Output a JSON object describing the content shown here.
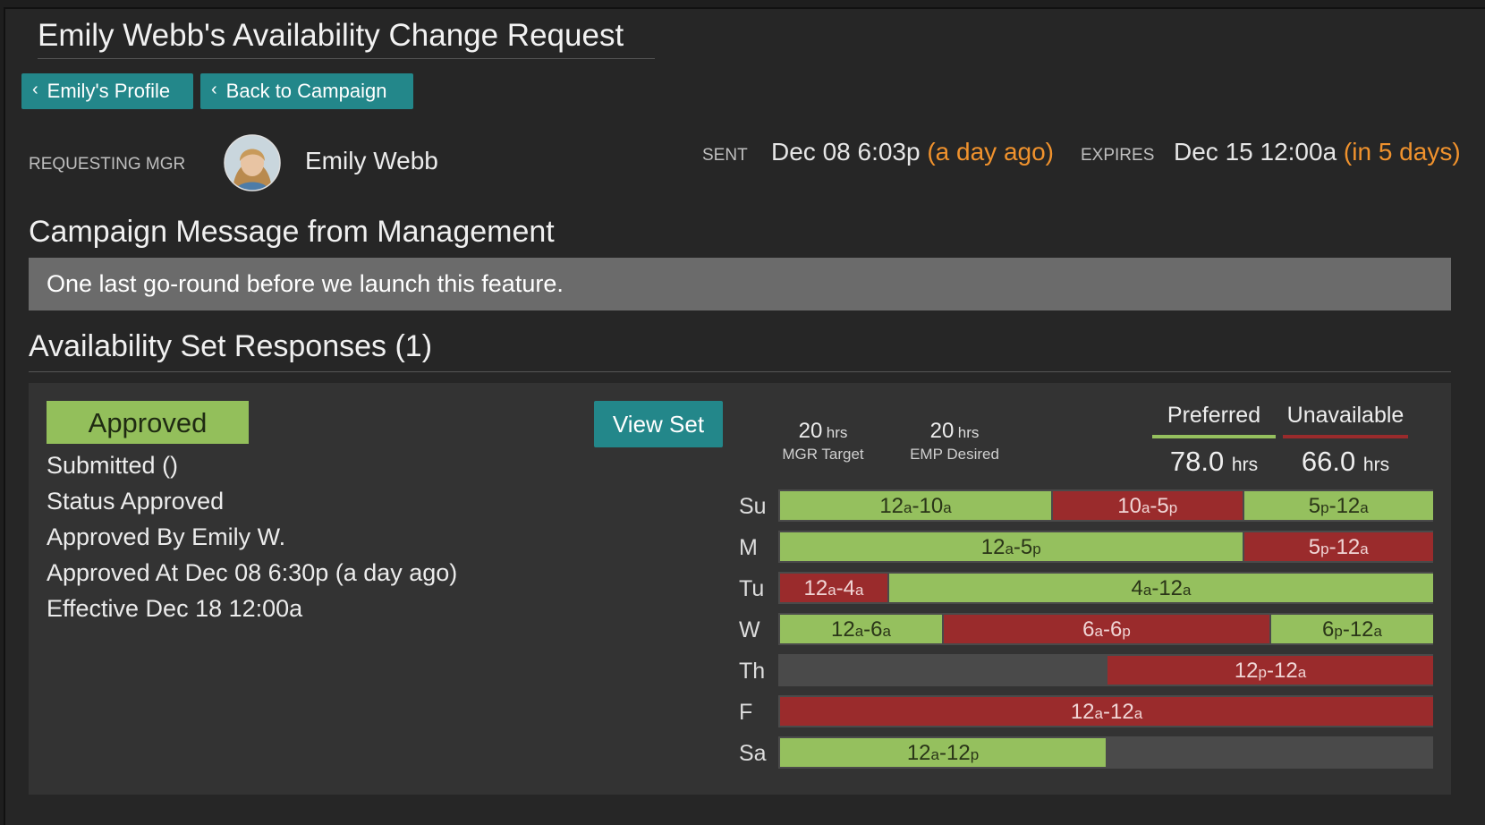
{
  "header": {
    "title": "Emily Webb's Availability Change Request",
    "buttons": [
      {
        "label": "Emily's Profile"
      },
      {
        "label": "Back to Campaign"
      }
    ]
  },
  "meta": {
    "requesting_label": "REQUESTING MGR",
    "manager_name": "Emily Webb",
    "sent_label": "SENT",
    "sent_value": "Dec 08 6:03p",
    "sent_relative": "(a day ago)",
    "expires_label": "EXPIRES",
    "expires_value": "Dec 15 12:00a",
    "expires_relative": "(in 5 days)"
  },
  "message": {
    "heading": "Campaign Message from Management",
    "body": "One last go-round before we launch this feature."
  },
  "responses": {
    "heading": "Availability Set Responses (1)",
    "status_badge": "Approved",
    "lines": [
      "Submitted ()",
      "Status Approved",
      "Approved By Emily W.",
      "Approved At Dec 08 6:30p (a day ago)",
      "Effective Dec 18 12:00a"
    ],
    "view_set_label": "View Set",
    "mgr_target": {
      "value": "20",
      "unit": "hrs",
      "label": "MGR Target"
    },
    "emp_desired": {
      "value": "20",
      "unit": "hrs",
      "label": "EMP Desired"
    },
    "preferred": {
      "label": "Preferred",
      "value": "78.0",
      "unit": "hrs",
      "color": "#95c05e"
    },
    "unavailable": {
      "label": "Unavailable",
      "value": "66.0",
      "unit": "hrs",
      "color": "#9a2b2c"
    },
    "days": [
      {
        "label": "Su",
        "segments": [
          {
            "type": "preferred",
            "start": 0,
            "end": 10,
            "from": "12",
            "from_ap": "a",
            "to": "10",
            "to_ap": "a"
          },
          {
            "type": "unavailable",
            "start": 10,
            "end": 17,
            "from": "10",
            "from_ap": "a",
            "to": "5",
            "to_ap": "p"
          },
          {
            "type": "preferred",
            "start": 17,
            "end": 24,
            "from": "5",
            "from_ap": "p",
            "to": "12",
            "to_ap": "a"
          }
        ]
      },
      {
        "label": "M",
        "segments": [
          {
            "type": "preferred",
            "start": 0,
            "end": 17,
            "from": "12",
            "from_ap": "a",
            "to": "5",
            "to_ap": "p"
          },
          {
            "type": "unavailable",
            "start": 17,
            "end": 24,
            "from": "5",
            "from_ap": "p",
            "to": "12",
            "to_ap": "a"
          }
        ]
      },
      {
        "label": "Tu",
        "segments": [
          {
            "type": "unavailable",
            "start": 0,
            "end": 4,
            "from": "12",
            "from_ap": "a",
            "to": "4",
            "to_ap": "a"
          },
          {
            "type": "preferred",
            "start": 4,
            "end": 24,
            "from": "4",
            "from_ap": "a",
            "to": "12",
            "to_ap": "a"
          }
        ]
      },
      {
        "label": "W",
        "segments": [
          {
            "type": "preferred",
            "start": 0,
            "end": 6,
            "from": "12",
            "from_ap": "a",
            "to": "6",
            "to_ap": "a"
          },
          {
            "type": "unavailable",
            "start": 6,
            "end": 18,
            "from": "6",
            "from_ap": "a",
            "to": "6",
            "to_ap": "p"
          },
          {
            "type": "preferred",
            "start": 18,
            "end": 24,
            "from": "6",
            "from_ap": "p",
            "to": "12",
            "to_ap": "a"
          }
        ]
      },
      {
        "label": "Th",
        "segments": [
          {
            "type": "unavailable",
            "start": 12,
            "end": 24,
            "from": "12",
            "from_ap": "p",
            "to": "12",
            "to_ap": "a"
          }
        ]
      },
      {
        "label": "F",
        "segments": [
          {
            "type": "unavailable",
            "start": 0,
            "end": 24,
            "from": "12",
            "from_ap": "a",
            "to": "12",
            "to_ap": "a"
          }
        ]
      },
      {
        "label": "Sa",
        "segments": [
          {
            "type": "preferred",
            "start": 0,
            "end": 12,
            "from": "12",
            "from_ap": "a",
            "to": "12",
            "to_ap": "p"
          }
        ]
      }
    ]
  }
}
